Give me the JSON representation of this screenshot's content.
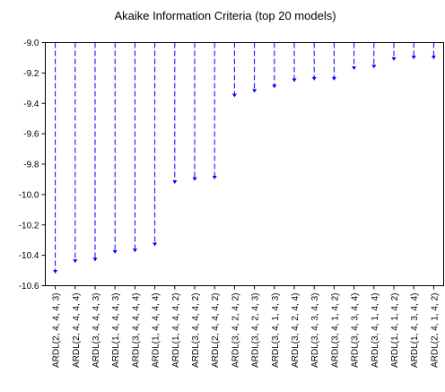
{
  "chart_data": {
    "type": "bar",
    "title": "Akaike Information Criteria (top 20 models)",
    "xlabel": "",
    "ylabel": "",
    "ylim": [
      -10.6,
      -9.0
    ],
    "yticks": [
      -9.0,
      -9.2,
      -9.4,
      -9.6,
      -9.8,
      -10.0,
      -10.2,
      -10.4,
      -10.6
    ],
    "ytick_labels": [
      "-9.0",
      "-9.2",
      "-9.4",
      "-9.6",
      "-9.8",
      "-10.0",
      "-10.2",
      "-10.4",
      "-10.6"
    ],
    "categories": [
      "ARDL(2, 4, 4, 4, 3)",
      "ARDL(2, 4, 4, 4, 4)",
      "ARDL(3, 4, 4, 4, 3)",
      "ARDL(1, 4, 4, 4, 3)",
      "ARDL(3, 4, 4, 4, 4)",
      "ARDL(1, 4, 4, 4, 4)",
      "ARDL(1, 4, 4, 4, 2)",
      "ARDL(3, 4, 4, 4, 2)",
      "ARDL(2, 4, 4, 4, 2)",
      "ARDL(3, 4, 2, 4, 2)",
      "ARDL(3, 4, 2, 4, 3)",
      "ARDL(3, 4, 1, 4, 3)",
      "ARDL(3, 4, 2, 4, 4)",
      "ARDL(3, 4, 3, 4, 3)",
      "ARDL(3, 4, 1, 4, 2)",
      "ARDL(3, 4, 3, 4, 4)",
      "ARDL(3, 4, 1, 4, 4)",
      "ARDL(1, 4, 1, 4, 2)",
      "ARDL(1, 4, 3, 4, 4)",
      "ARDL(2, 4, 1, 4, 2)"
    ],
    "values": [
      -10.52,
      -10.45,
      -10.44,
      -10.39,
      -10.38,
      -10.34,
      -9.93,
      -9.91,
      -9.9,
      -9.36,
      -9.33,
      -9.3,
      -9.26,
      -9.25,
      -9.25,
      -9.18,
      -9.17,
      -9.12,
      -9.11,
      -9.11
    ],
    "grid": false,
    "colors": {
      "bar": "#0000ff",
      "frame": "#000000",
      "text": "#000000"
    }
  }
}
